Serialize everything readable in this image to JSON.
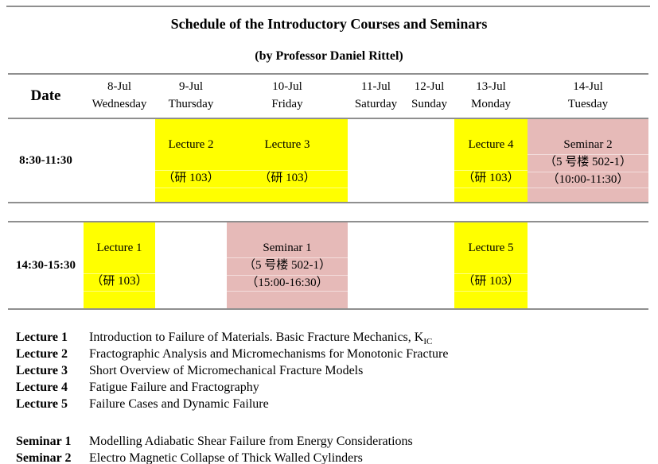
{
  "title": "Schedule of the Introductory Courses and Seminars",
  "subtitle": "(by Professor Daniel Rittel)",
  "colors": {
    "lecture_bg": "#FFFF00",
    "seminar_bg": "#E6BAB8",
    "rule": "#8F8F8F"
  },
  "table": {
    "date_header": "Date",
    "days": [
      {
        "date": "8-Jul",
        "day": "Wednesday"
      },
      {
        "date": "9-Jul",
        "day": "Thursday"
      },
      {
        "date": "10-Jul",
        "day": "Friday"
      },
      {
        "date": "11-Jul",
        "day": "Saturday"
      },
      {
        "date": "12-Jul",
        "day": "Sunday"
      },
      {
        "date": "13-Jul",
        "day": "Monday"
      },
      {
        "date": "14-Jul",
        "day": "Tuesday"
      }
    ],
    "rows": [
      {
        "time": "8:30-11:30",
        "cells": {
          "thursday": {
            "type": "lecture",
            "lines": [
              "Lecture 2",
              "（研 103）"
            ]
          },
          "friday": {
            "type": "lecture",
            "lines": [
              "Lecture 3",
              "（研 103）"
            ]
          },
          "monday": {
            "type": "lecture",
            "lines": [
              "Lecture 4",
              "（研 103）"
            ]
          },
          "tuesday": {
            "type": "seminar",
            "lines": [
              "Seminar 2",
              "（5 号楼 502-1）",
              "（10:00-11:30）"
            ]
          }
        }
      },
      {
        "time": "14:30-15:30",
        "cells": {
          "wednesday": {
            "type": "lecture",
            "lines": [
              "Lecture 1",
              "（研 103）"
            ]
          },
          "friday": {
            "type": "seminar",
            "lines": [
              "Seminar 1",
              "（5 号楼 502-1）",
              "（15:00-16:30）"
            ]
          },
          "monday": {
            "type": "lecture",
            "lines": [
              "Lecture 5",
              "（研 103）"
            ]
          }
        }
      }
    ]
  },
  "legend": {
    "lectures": [
      {
        "label": "Lecture 1",
        "desc": "Introduction to Failure of Materials. Basic Fracture Mechanics, K",
        "desc_sub": "IC"
      },
      {
        "label": "Lecture 2",
        "desc": "Fractographic Analysis and Micromechanisms for Monotonic Fracture"
      },
      {
        "label": "Lecture 3",
        "desc": "Short Overview of Micromechanical Fracture Models"
      },
      {
        "label": "Lecture 4",
        "desc": "Fatigue Failure and Fractography"
      },
      {
        "label": "Lecture 5",
        "desc": "Failure Cases and Dynamic Failure"
      }
    ],
    "seminars": [
      {
        "label": "Seminar 1",
        "desc": "Modelling Adiabatic Shear Failure from Energy Considerations"
      },
      {
        "label": "Seminar 2",
        "desc": "Electro Magnetic Collapse of Thick Walled Cylinders"
      }
    ]
  }
}
